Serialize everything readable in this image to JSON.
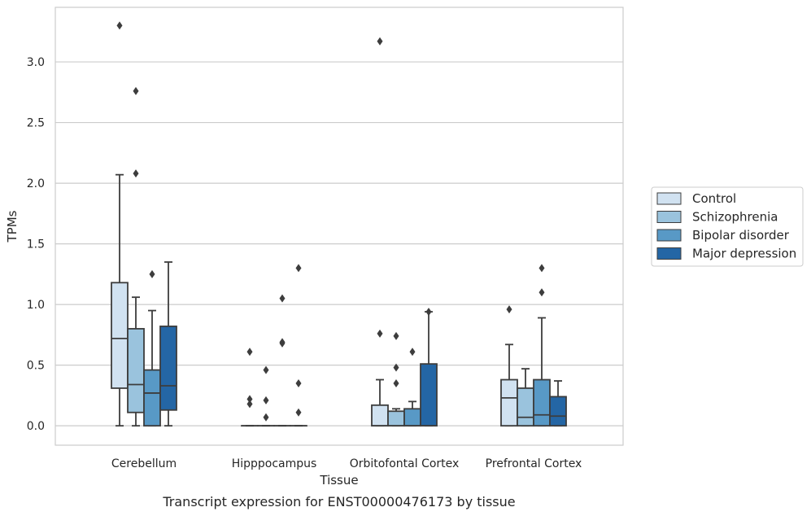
{
  "caption": "Transcript expression for ENST00000476173 by tissue",
  "chart_data": {
    "type": "boxplot",
    "title": "",
    "xlabel": "Tissue",
    "ylabel": "TPMs",
    "ylim": [
      -0.16,
      3.45
    ],
    "yticks": [
      "0.0",
      "0.5",
      "1.0",
      "1.5",
      "2.0",
      "2.5",
      "3.0"
    ],
    "grid": "horizontal",
    "legend_position": "right",
    "categories": [
      "Cerebellum",
      "Hipppocampus",
      "Orbitofontal Cortex",
      "Prefrontal Cortex"
    ],
    "series": [
      {
        "name": "Control",
        "color": "#d1e2f1",
        "boxes": [
          {
            "whislo": 0.0,
            "q1": 0.31,
            "med": 0.72,
            "q3": 1.18,
            "whishi": 2.07,
            "fliers": [
              3.3
            ]
          },
          {
            "whislo": 0.0,
            "q1": 0.0,
            "med": 0.0,
            "q3": 0.0,
            "whishi": 0.0,
            "fliers": [
              0.61,
              0.22,
              0.18
            ]
          },
          {
            "whislo": 0.0,
            "q1": 0.0,
            "med": 0.0,
            "q3": 0.17,
            "whishi": 0.38,
            "fliers": [
              0.76,
              3.17
            ]
          },
          {
            "whislo": 0.0,
            "q1": 0.0,
            "med": 0.23,
            "q3": 0.38,
            "whishi": 0.67,
            "fliers": [
              0.96
            ]
          }
        ]
      },
      {
        "name": "Schizophrenia",
        "color": "#9ac3dd",
        "boxes": [
          {
            "whislo": 0.0,
            "q1": 0.11,
            "med": 0.34,
            "q3": 0.8,
            "whishi": 1.06,
            "fliers": [
              2.08,
              2.76
            ]
          },
          {
            "whislo": 0.0,
            "q1": 0.0,
            "med": 0.0,
            "q3": 0.0,
            "whishi": 0.0,
            "fliers": [
              0.46,
              0.21,
              0.07
            ]
          },
          {
            "whislo": 0.0,
            "q1": 0.0,
            "med": 0.0,
            "q3": 0.12,
            "whishi": 0.14,
            "fliers": [
              0.74,
              0.48,
              0.35
            ]
          },
          {
            "whislo": 0.0,
            "q1": 0.0,
            "med": 0.07,
            "q3": 0.31,
            "whishi": 0.47,
            "fliers": []
          }
        ]
      },
      {
        "name": "Bipolar disorder",
        "color": "#5899c6",
        "boxes": [
          {
            "whislo": 0.0,
            "q1": 0.0,
            "med": 0.27,
            "q3": 0.46,
            "whishi": 0.95,
            "fliers": [
              1.25
            ]
          },
          {
            "whislo": 0.0,
            "q1": 0.0,
            "med": 0.0,
            "q3": 0.0,
            "whishi": 0.0,
            "fliers": [
              1.05,
              0.69,
              0.68
            ]
          },
          {
            "whislo": 0.0,
            "q1": 0.0,
            "med": 0.0,
            "q3": 0.14,
            "whishi": 0.2,
            "fliers": [
              0.61
            ]
          },
          {
            "whislo": 0.0,
            "q1": 0.0,
            "med": 0.09,
            "q3": 0.38,
            "whishi": 0.89,
            "fliers": [
              1.1,
              1.3
            ]
          }
        ]
      },
      {
        "name": "Major depression",
        "color": "#2466a5",
        "boxes": [
          {
            "whislo": 0.0,
            "q1": 0.13,
            "med": 0.33,
            "q3": 0.82,
            "whishi": 1.35,
            "fliers": []
          },
          {
            "whislo": 0.0,
            "q1": 0.0,
            "med": 0.0,
            "q3": 0.0,
            "whishi": 0.0,
            "fliers": [
              1.3,
              0.35,
              0.11
            ]
          },
          {
            "whislo": 0.0,
            "q1": 0.0,
            "med": 0.0,
            "q3": 0.51,
            "whishi": 0.94,
            "fliers": [
              0.94
            ]
          },
          {
            "whislo": 0.0,
            "q1": 0.0,
            "med": 0.08,
            "q3": 0.24,
            "whishi": 0.37,
            "fliers": []
          }
        ]
      }
    ]
  }
}
